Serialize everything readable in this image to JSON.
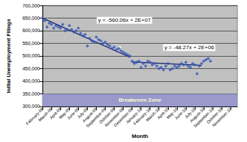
{
  "chart_data": {
    "type": "scatter",
    "x_label": "Month",
    "y_label": "Initial Unemployment Filings",
    "categories": [
      "February-09",
      null,
      null,
      null,
      "March-09",
      null,
      null,
      null,
      "April-09",
      null,
      null,
      null,
      "May-09",
      null,
      null,
      null,
      "June-09",
      null,
      null,
      null,
      "July-09",
      null,
      null,
      null,
      "August-09",
      null,
      null,
      null,
      "September-09",
      null,
      null,
      null,
      "October-09",
      null,
      null,
      null,
      "November-09",
      null,
      null,
      null,
      "December-09",
      null,
      null,
      null,
      "January-10",
      null,
      null,
      null,
      "February-10",
      null,
      null,
      null,
      "March-10",
      null,
      null,
      null,
      "April-10",
      null,
      null,
      null,
      "May-10",
      null,
      null,
      null,
      "June-10",
      null,
      null,
      null,
      "July-10",
      null,
      null,
      null,
      "August-10",
      null,
      null,
      null,
      "September-10",
      null,
      null,
      null,
      "October-10",
      null,
      null,
      null,
      "November-10",
      null,
      null,
      null
    ],
    "series": [
      {
        "color": "#3355bb",
        "marker": "diamond",
        "values": [
          650000,
          640000,
          615000,
          630000,
          625000,
          610000,
          620000,
          615000,
          610000,
          625000,
          600000,
          605000,
          620000,
          605000,
          595000,
          600000,
          610000,
          590000,
          580000,
          585000,
          540000,
          570000,
          560000,
          555000,
          575000,
          565000,
          560000,
          550000,
          555000,
          545000,
          540000,
          530000,
          535000,
          525000,
          530000,
          520000,
          515000,
          510000,
          505000,
          500000,
          480000,
          470000,
          475000,
          480000,
          455000,
          470000,
          460000,
          480000,
          475000,
          465000,
          470000,
          460000,
          450000,
          455000,
          445000,
          460000,
          470000,
          445000,
          450000,
          460000,
          455000,
          460000,
          470000,
          465000,
          475000,
          460000,
          455000,
          470000,
          465000,
          430000,
          460000,
          470000,
          480000,
          485000,
          490000,
          480000,
          null,
          null,
          null,
          null,
          null,
          null,
          null,
          null,
          null,
          null,
          null,
          null
        ]
      }
    ],
    "trendlines": [
      {
        "label": "y = -560.06x + 2E+07",
        "color": "#1f3070",
        "values": [
          650000,
          null,
          null,
          null,
          null,
          null,
          null,
          null,
          null,
          null,
          null,
          null,
          null,
          null,
          null,
          null,
          null,
          null,
          null,
          null,
          null,
          null,
          null,
          null,
          null,
          null,
          null,
          null,
          null,
          null,
          null,
          null,
          null,
          null,
          null,
          null,
          null,
          null,
          null,
          495000,
          null,
          null,
          null,
          null,
          null,
          null,
          null,
          null,
          null,
          null,
          null,
          null,
          null,
          null,
          null,
          null,
          null,
          null,
          null,
          null,
          null,
          null,
          null,
          null,
          null,
          null,
          null,
          null,
          null,
          null,
          null,
          null,
          null,
          null,
          null,
          null,
          null,
          null,
          null,
          null,
          null,
          null,
          null,
          null,
          null,
          null,
          null,
          null
        ]
      },
      {
        "label": "y = -48.27x + 2E+06",
        "color": "#1f3070",
        "values": [
          null,
          null,
          null,
          null,
          null,
          null,
          null,
          null,
          null,
          null,
          null,
          null,
          null,
          null,
          null,
          null,
          null,
          null,
          null,
          null,
          null,
          null,
          null,
          null,
          null,
          null,
          null,
          null,
          null,
          null,
          null,
          null,
          null,
          null,
          null,
          null,
          null,
          null,
          null,
          null,
          476000,
          null,
          null,
          null,
          null,
          null,
          null,
          null,
          null,
          null,
          null,
          null,
          null,
          null,
          null,
          null,
          null,
          null,
          null,
          null,
          null,
          null,
          null,
          null,
          null,
          null,
          null,
          null,
          null,
          null,
          null,
          463000,
          null,
          null,
          null,
          null,
          null,
          null,
          null,
          null,
          null,
          null,
          null,
          null
        ]
      }
    ],
    "bands": [
      {
        "label": "Breakeven Zone",
        "range": [
          300000,
          350000
        ],
        "color": "#9999cc"
      }
    ],
    "ylim": [
      300000,
      700000
    ],
    "yticks": [
      {
        "value": 300000,
        "label": "300,000"
      },
      {
        "value": 350000,
        "label": "350,000"
      },
      {
        "value": 400000,
        "label": "400,000"
      },
      {
        "value": 450000,
        "label": "450,000"
      },
      {
        "value": 500000,
        "label": "500,000"
      },
      {
        "value": 550000,
        "label": "550,000"
      },
      {
        "value": 600000,
        "label": "600,000"
      },
      {
        "value": 650000,
        "label": "650,000"
      },
      {
        "value": 700000,
        "label": "700,000"
      }
    ],
    "grid": true
  }
}
